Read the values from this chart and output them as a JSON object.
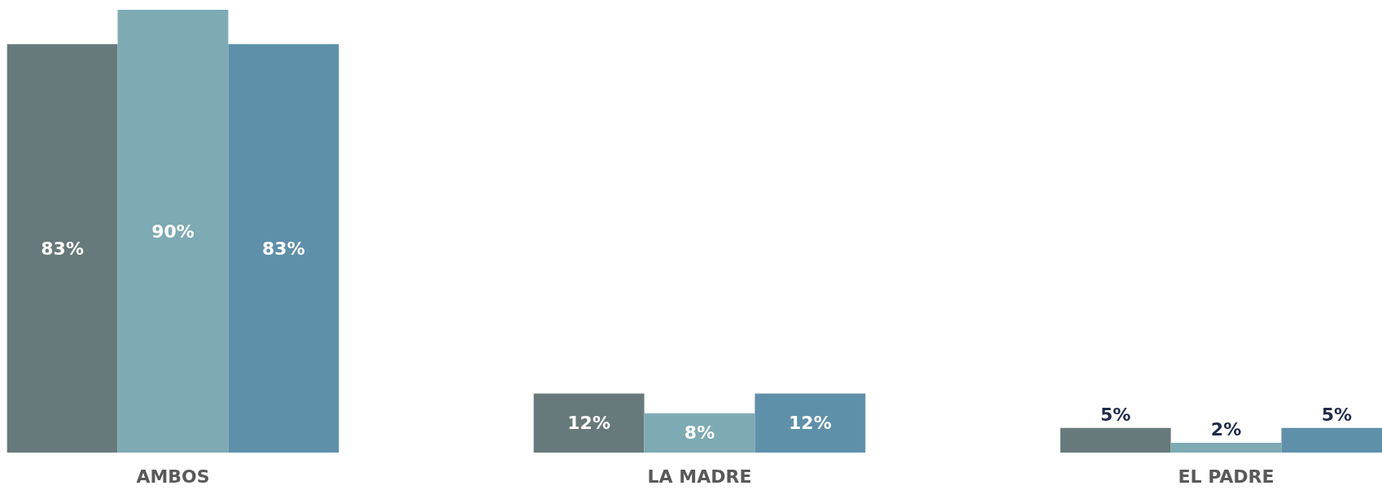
{
  "chart_data": {
    "type": "bar",
    "categories": [
      "AMBOS",
      "LA MADRE",
      "EL PADRE"
    ],
    "series": [
      {
        "color": "#67797b",
        "values": [
          83,
          12,
          5
        ],
        "value_labels": [
          "83%",
          "12%",
          "5%"
        ]
      },
      {
        "color": "#7eaab3",
        "values": [
          90,
          8,
          2
        ],
        "value_labels": [
          "90%",
          "8%",
          "2%"
        ]
      },
      {
        "color": "#5f90aa",
        "values": [
          83,
          12,
          5
        ],
        "value_labels": [
          "83%",
          "12%",
          "5%"
        ]
      }
    ]
  }
}
